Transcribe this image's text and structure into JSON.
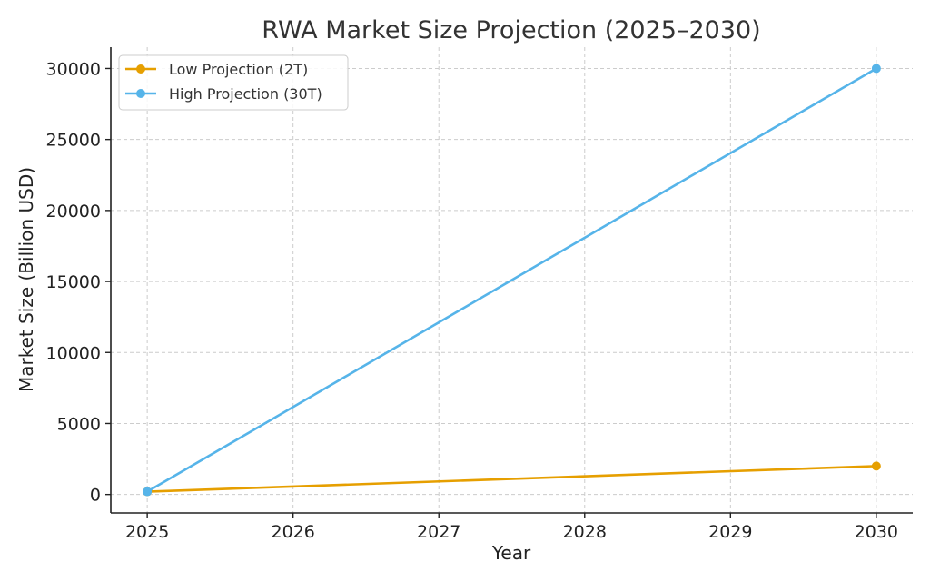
{
  "chart_data": {
    "type": "line",
    "title": "RWA Market Size Projection (2025–2030)",
    "xlabel": "Year",
    "ylabel": "Market Size (Billion USD)",
    "x": [
      2025,
      2026,
      2027,
      2028,
      2029,
      2030
    ],
    "xticks": [
      "2025",
      "2026",
      "2027",
      "2028",
      "2029",
      "2030"
    ],
    "yticks": [
      "0",
      "5000",
      "10000",
      "15000",
      "20000",
      "25000",
      "30000"
    ],
    "ytick_values": [
      0,
      5000,
      10000,
      15000,
      20000,
      25000,
      30000
    ],
    "xlim": [
      2024.75,
      2030.25
    ],
    "ylim": [
      -1300,
      31500
    ],
    "grid": true,
    "legend_position": "top-left",
    "series": [
      {
        "name": "Low Projection (2T)",
        "color": "#E69F00",
        "points": [
          [
            2025,
            200
          ],
          [
            2030,
            2000
          ]
        ]
      },
      {
        "name": "High Projection (30T)",
        "color": "#56B4E9",
        "points": [
          [
            2025,
            200
          ],
          [
            2030,
            30000
          ]
        ]
      }
    ]
  }
}
